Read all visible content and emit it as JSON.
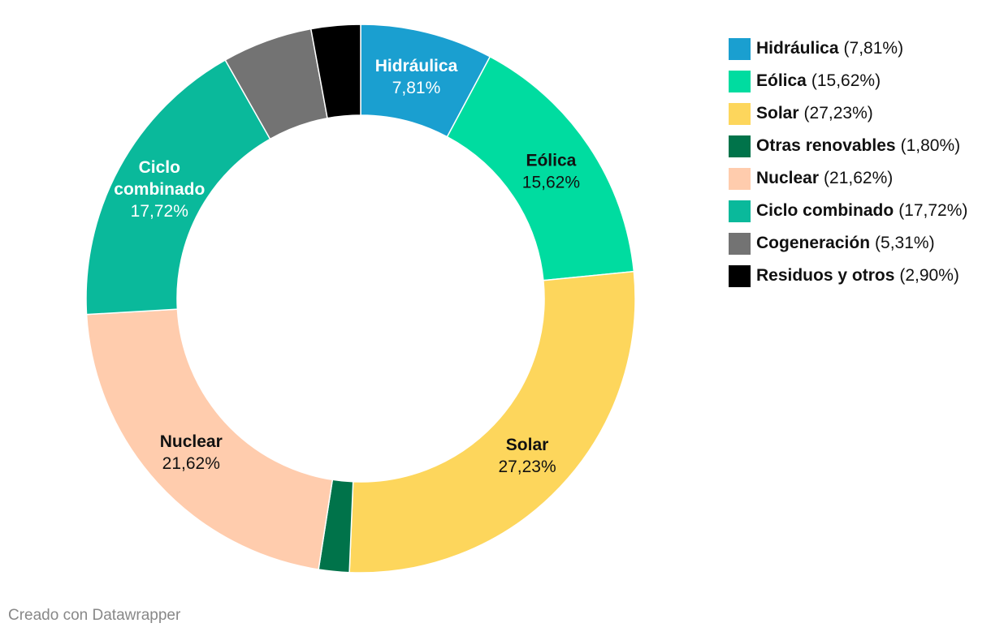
{
  "chart_data": {
    "type": "pie",
    "donut": true,
    "slices": [
      {
        "name": "Hidráulica",
        "value": 7.81,
        "label_pct": "7,81%",
        "legend_pct": "(7,81%)",
        "color": "#1a9fd0",
        "label_color": "#ffffff",
        "show_label": true,
        "label_lines": [
          "Hidráulica"
        ]
      },
      {
        "name": "Eólica",
        "value": 15.62,
        "label_pct": "15,62%",
        "legend_pct": "(15,62%)",
        "color": "#00dca0",
        "label_color": "#111111",
        "show_label": true,
        "label_lines": [
          "Eólica"
        ]
      },
      {
        "name": "Solar",
        "value": 27.23,
        "label_pct": "27,23%",
        "legend_pct": "(27,23%)",
        "color": "#fdd65c",
        "label_color": "#111111",
        "show_label": true,
        "label_lines": [
          "Solar"
        ]
      },
      {
        "name": "Otras renovables",
        "value": 1.8,
        "label_pct": "1,80%",
        "legend_pct": "(1,80%)",
        "color": "#00734a",
        "label_color": "#ffffff",
        "show_label": false,
        "label_lines": []
      },
      {
        "name": "Nuclear",
        "value": 21.62,
        "label_pct": "21,62%",
        "legend_pct": "(21,62%)",
        "color": "#ffccad",
        "label_color": "#111111",
        "show_label": true,
        "label_lines": [
          "Nuclear"
        ]
      },
      {
        "name": "Ciclo combinado",
        "value": 17.72,
        "label_pct": "17,72%",
        "legend_pct": "(17,72%)",
        "color": "#0ab99b",
        "label_color": "#ffffff",
        "show_label": true,
        "label_lines": [
          "Ciclo",
          "combinado"
        ]
      },
      {
        "name": "Cogeneración",
        "value": 5.31,
        "label_pct": "5,31%",
        "legend_pct": "(5,31%)",
        "color": "#737373",
        "label_color": "#ffffff",
        "show_label": false,
        "label_lines": []
      },
      {
        "name": "Residuos y otros",
        "value": 2.9,
        "label_pct": "2,90%",
        "legend_pct": "(2,90%)",
        "color": "#000000",
        "label_color": "#ffffff",
        "show_label": false,
        "label_lines": []
      }
    ],
    "legend_position": "right"
  },
  "footer": {
    "credit": "Creado con Datawrapper"
  }
}
